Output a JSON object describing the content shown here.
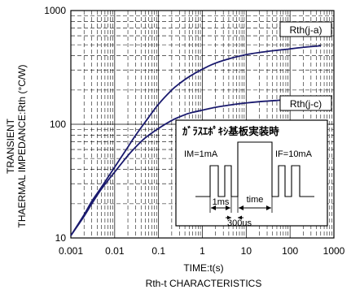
{
  "chart_data": {
    "type": "line",
    "title": "",
    "xlabel": "TIME:t(s)",
    "ylabel_line1": "TRANSIENT",
    "ylabel_line2": "THAERMAL IMPEDANCE:Rth (°C/W)",
    "caption": "Rth-t CHARACTERISTICS",
    "x_scale": "log",
    "y_scale": "log",
    "xlim": [
      0.001,
      1000
    ],
    "ylim": [
      10,
      1000
    ],
    "grid": true,
    "x_ticks": [
      {
        "value": 0.001,
        "label": "0.001"
      },
      {
        "value": 0.01,
        "label": "0.01"
      },
      {
        "value": 0.1,
        "label": "0.1"
      },
      {
        "value": 1,
        "label": "1"
      },
      {
        "value": 10,
        "label": "10"
      },
      {
        "value": 100,
        "label": "100"
      },
      {
        "value": 1000,
        "label": "1000"
      }
    ],
    "y_ticks": [
      {
        "value": 10,
        "label": "10"
      },
      {
        "value": 100,
        "label": "100"
      },
      {
        "value": 1000,
        "label": "1000"
      }
    ],
    "line_color": "#1a1a6e",
    "series": [
      {
        "name": "Rth(j-a)",
        "x": [
          0.001,
          0.002,
          0.003,
          0.005,
          0.01,
          0.02,
          0.03,
          0.05,
          0.1,
          0.2,
          0.3,
          0.5,
          1,
          2,
          5,
          10,
          20,
          50,
          100,
          200,
          500
        ],
        "y": [
          10.5,
          16,
          21,
          28,
          42,
          63,
          80,
          105,
          150,
          200,
          228,
          262,
          305,
          345,
          385,
          410,
          428,
          447,
          460,
          475,
          490
        ]
      },
      {
        "name": "Rth(j-c)",
        "x": [
          0.001,
          0.002,
          0.003,
          0.005,
          0.01,
          0.02,
          0.03,
          0.05,
          0.1,
          0.2,
          0.3,
          0.5,
          1,
          2,
          5,
          10,
          20,
          50,
          100,
          200,
          500
        ],
        "y": [
          10.5,
          15.5,
          20,
          27,
          38,
          53,
          63,
          76,
          92,
          108,
          116,
          125,
          133,
          141,
          149,
          154,
          158,
          162,
          165,
          167,
          168
        ]
      }
    ],
    "inset": {
      "title": "ｶﾞﾗｽｴﾎﾟｷｼ基板実装時",
      "im_label": "IM=1mA",
      "if_label": "IF=10mA",
      "t1_label": "1ms",
      "t2_label": "time",
      "t3_label": "300us"
    }
  }
}
